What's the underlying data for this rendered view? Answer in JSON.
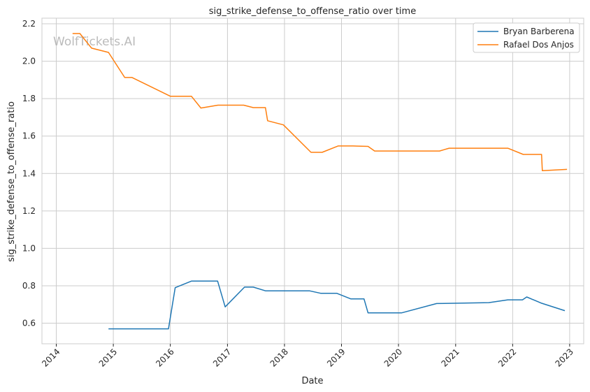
{
  "chart_data": {
    "type": "line",
    "title": "sig_strike_defense_to_offense_ratio over time",
    "xlabel": "Date",
    "ylabel": "sig_strike_defense_to_offense_ratio",
    "watermark": "WolfTickets.AI",
    "x_ticks": [
      "2014",
      "2015",
      "2016",
      "2017",
      "2018",
      "2019",
      "2020",
      "2021",
      "2022",
      "2023"
    ],
    "y_ticks": [
      "0.6",
      "0.8",
      "1.0",
      "1.2",
      "1.4",
      "1.6",
      "1.8",
      "2.0",
      "2.2"
    ],
    "xlim": [
      "2013-10-01",
      "2023-04-01"
    ],
    "ylim": [
      0.49,
      2.23
    ],
    "grid": true,
    "legend_position": "top-right",
    "series": [
      {
        "name": "Bryan Barberena",
        "color": "#1f77b4",
        "points": [
          [
            "2014-12-01",
            0.57
          ],
          [
            "2015-12-20",
            0.57
          ],
          [
            "2016-02-01",
            0.79
          ],
          [
            "2016-05-15",
            0.825
          ],
          [
            "2016-10-30",
            0.825
          ],
          [
            "2016-12-17",
            0.687
          ],
          [
            "2017-04-20",
            0.793
          ],
          [
            "2017-06-15",
            0.793
          ],
          [
            "2017-09-01",
            0.773
          ],
          [
            "2018-06-10",
            0.773
          ],
          [
            "2018-08-20",
            0.76
          ],
          [
            "2018-12-01",
            0.76
          ],
          [
            "2019-03-01",
            0.73
          ],
          [
            "2019-05-25",
            0.73
          ],
          [
            "2019-06-20",
            0.655
          ],
          [
            "2020-01-20",
            0.655
          ],
          [
            "2020-09-01",
            0.705
          ],
          [
            "2021-08-01",
            0.71
          ],
          [
            "2021-12-01",
            0.725
          ],
          [
            "2022-03-05",
            0.725
          ],
          [
            "2022-04-01",
            0.74
          ],
          [
            "2022-07-01",
            0.708
          ],
          [
            "2022-12-01",
            0.667
          ]
        ]
      },
      {
        "name": "Rafael Dos Anjos",
        "color": "#ff7f0e",
        "points": [
          [
            "2014-04-15",
            2.148
          ],
          [
            "2014-06-01",
            2.148
          ],
          [
            "2014-08-15",
            2.07
          ],
          [
            "2014-12-01",
            2.047
          ],
          [
            "2015-03-15",
            1.913
          ],
          [
            "2015-05-01",
            1.913
          ],
          [
            "2016-01-01",
            1.813
          ],
          [
            "2016-05-15",
            1.813
          ],
          [
            "2016-07-15",
            1.75
          ],
          [
            "2016-11-01",
            1.765
          ],
          [
            "2017-04-15",
            1.765
          ],
          [
            "2017-06-15",
            1.752
          ],
          [
            "2017-09-01",
            1.752
          ],
          [
            "2017-09-15",
            1.682
          ],
          [
            "2017-12-25",
            1.66
          ],
          [
            "2018-06-20",
            1.513
          ],
          [
            "2018-08-30",
            1.513
          ],
          [
            "2018-12-10",
            1.547
          ],
          [
            "2019-03-15",
            1.547
          ],
          [
            "2019-06-20",
            1.545
          ],
          [
            "2019-08-01",
            1.52
          ],
          [
            "2020-09-20",
            1.52
          ],
          [
            "2020-11-20",
            1.535
          ],
          [
            "2021-12-01",
            1.535
          ],
          [
            "2022-03-10",
            1.502
          ],
          [
            "2022-07-05",
            1.502
          ],
          [
            "2022-07-10",
            1.415
          ],
          [
            "2022-12-15",
            1.422
          ]
        ]
      }
    ]
  }
}
